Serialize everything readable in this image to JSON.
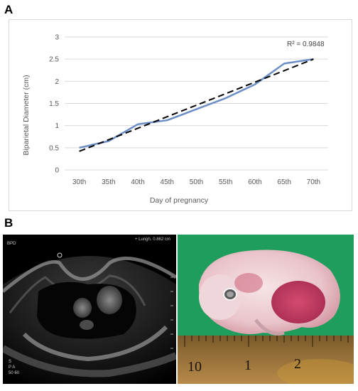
{
  "panels": {
    "a": "A",
    "b": "B"
  },
  "chart_data": {
    "type": "line",
    "categories": [
      "30th",
      "35th",
      "40th",
      "45th",
      "50th",
      "55th",
      "60th",
      "65th",
      "70th"
    ],
    "series": [
      {
        "values": [
          0.5,
          0.65,
          1.03,
          1.12,
          1.37,
          1.62,
          1.93,
          2.4,
          2.5
        ],
        "color": "#6b8ec7"
      }
    ],
    "trendline": {
      "type": "linear",
      "start": 0.42,
      "end": 2.5,
      "color": "#000000",
      "dashed": true,
      "label": "R² = 0.9848"
    },
    "xlabel": "Day of pregnancy",
    "ylabel": "Biparietal Diameter  (cm)",
    "ylim": [
      0,
      3
    ],
    "yticks": [
      "0",
      "0.5",
      "1",
      "1.5",
      "2",
      "2.5",
      "3"
    ],
    "grid": "horizontal"
  },
  "ultrasound": {
    "mode": "BPD",
    "measure": "+ Lungh.  0.862 cm",
    "probe": "S",
    "readout_lines": [
      "P  A",
      "50  60"
    ]
  },
  "ruler": {
    "numbers": [
      "10",
      "1",
      "2"
    ]
  },
  "colors": {
    "line": "#6b8ec7",
    "trend": "#000000",
    "grid": "#d9d9d9",
    "photo_background": "#1f9d5c"
  }
}
